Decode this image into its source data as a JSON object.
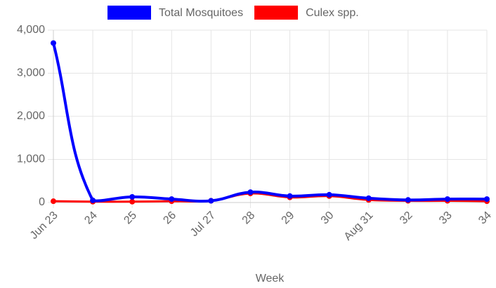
{
  "chart_data": {
    "type": "line",
    "x_label": "Week",
    "categories": [
      "Jun 23",
      "24",
      "25",
      "26",
      "Jul 27",
      "28",
      "29",
      "30",
      "Aug 31",
      "32",
      "33",
      "34"
    ],
    "series": [
      {
        "name": "Total Mosquitoes",
        "color": "#0000ff",
        "values": [
          3700,
          50,
          130,
          80,
          40,
          240,
          150,
          180,
          100,
          60,
          80,
          80
        ]
      },
      {
        "name": "Culex spp.",
        "color": "#ff0000",
        "values": [
          30,
          20,
          20,
          30,
          40,
          210,
          120,
          150,
          60,
          40,
          40,
          30
        ]
      }
    ],
    "ylim": [
      0,
      4000
    ],
    "yticks": [
      {
        "value": 0,
        "label": "0"
      },
      {
        "value": 1000,
        "label": "1,000"
      },
      {
        "value": 2000,
        "label": "2,000"
      },
      {
        "value": 3000,
        "label": "3,000"
      },
      {
        "value": 4000,
        "label": "4,000"
      }
    ],
    "grid": true,
    "legend": "top"
  }
}
